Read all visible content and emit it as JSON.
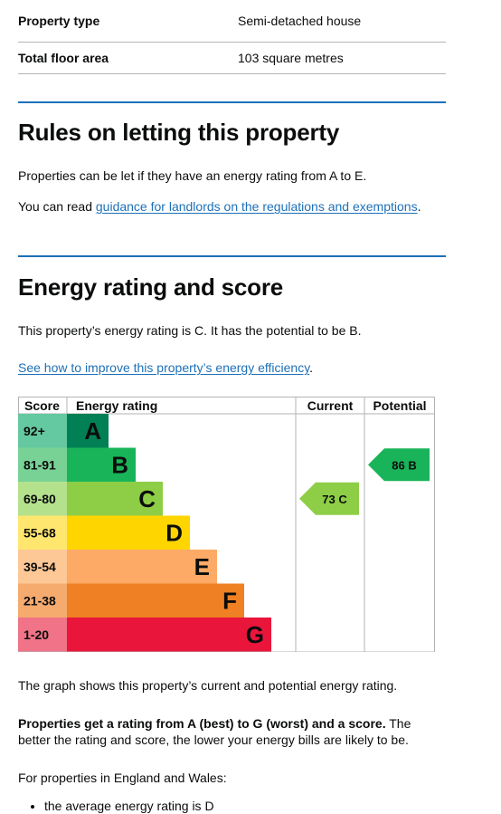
{
  "summary": {
    "rows": [
      {
        "key": "Property type",
        "value": "Semi-detached house"
      },
      {
        "key": "Total floor area",
        "value": "103 square metres"
      }
    ]
  },
  "letting": {
    "heading": "Rules on letting this property",
    "para1": "Properties can be let if they have an energy rating from A to E.",
    "para2_prefix": "You can read ",
    "para2_link": "guidance for landlords on the regulations and exemptions",
    "para2_suffix": "."
  },
  "energy": {
    "heading": "Energy rating and score",
    "para1": "This property’s energy rating is C. It has the potential to be B.",
    "link": "See how to improve this property’s energy efficiency",
    "link_suffix": "."
  },
  "chart_data": {
    "type": "table",
    "headers": {
      "score": "Score",
      "rating": "Energy rating",
      "current": "Current",
      "potential": "Potential"
    },
    "bands": [
      {
        "range": "92+",
        "letter": "A",
        "color": "#008054",
        "score_bg": "#64c8a0"
      },
      {
        "range": "81-91",
        "letter": "B",
        "color": "#19b459",
        "score_bg": "#78d296"
      },
      {
        "range": "69-80",
        "letter": "C",
        "color": "#8dce46",
        "score_bg": "#b4e18c"
      },
      {
        "range": "55-68",
        "letter": "D",
        "color": "#ffd500",
        "score_bg": "#ffe66e"
      },
      {
        "range": "39-54",
        "letter": "E",
        "color": "#fcaa65",
        "score_bg": "#fdc896"
      },
      {
        "range": "21-38",
        "letter": "F",
        "color": "#ef8023",
        "score_bg": "#f5aa6e"
      },
      {
        "range": "1-20",
        "letter": "G",
        "color": "#e9153b",
        "score_bg": "#f07387"
      }
    ],
    "current": {
      "score": 73,
      "letter": "C",
      "label": "73 C",
      "color": "#8dce46"
    },
    "potential": {
      "score": 86,
      "letter": "B",
      "label": "86 B",
      "color": "#19b459"
    }
  },
  "after": {
    "para1": "The graph shows this property’s current and potential energy rating.",
    "para2_bold": "Properties get a rating from A (best) to G (worst) and a score.",
    "para2_rest": " The better the rating and score, the lower your energy bills are likely to be.",
    "para3": "For properties in England and Wales:",
    "bullets": [
      "the average energy rating is D"
    ]
  }
}
